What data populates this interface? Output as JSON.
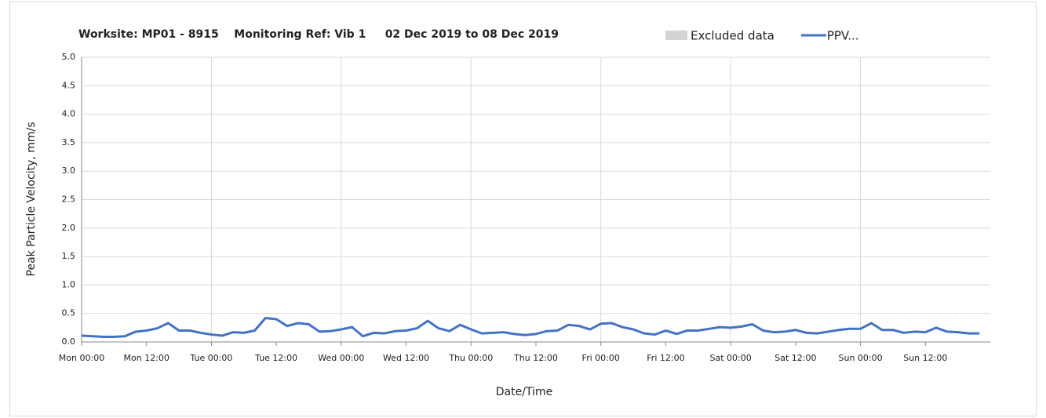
{
  "chart_data": {
    "type": "line",
    "title": "Worksite: MP01 - 8915    Monitoring Ref: Vib 1     02 Dec 2019 to 08 Dec 2019",
    "x_label": "Date/Time",
    "y_label": "Peak Particle Velocity, mm/s",
    "legend": [
      {
        "name": "Excluded data",
        "color": "#d3d3d3"
      }
    ],
    "x": [
      0,
      2,
      4,
      6,
      8,
      10,
      12,
      14,
      16,
      18,
      20,
      22,
      24,
      26,
      28,
      30,
      32,
      34,
      36,
      38,
      40,
      42,
      44,
      46,
      48,
      50,
      52,
      54,
      56,
      58,
      60,
      62,
      64,
      66,
      68,
      70,
      72,
      74,
      76,
      78,
      80,
      82,
      84,
      86,
      88,
      90,
      92,
      94,
      96,
      98,
      100,
      102,
      104,
      106,
      108,
      110,
      112,
      114,
      116,
      118,
      120,
      122,
      124,
      126,
      128,
      130,
      132,
      134,
      136,
      138,
      140,
      142,
      144,
      146,
      148,
      150,
      152,
      154,
      156,
      158,
      160,
      162,
      164,
      166
    ],
    "series": [
      {
        "name": "PPV...",
        "color": "#4472c4",
        "values": [
          0.11,
          0.1,
          0.09,
          0.09,
          0.1,
          0.18,
          0.2,
          0.24,
          0.33,
          0.2,
          0.2,
          0.16,
          0.13,
          0.11,
          0.17,
          0.16,
          0.2,
          0.42,
          0.4,
          0.28,
          0.33,
          0.31,
          0.18,
          0.19,
          0.22,
          0.26,
          0.1,
          0.16,
          0.15,
          0.19,
          0.2,
          0.24,
          0.37,
          0.24,
          0.19,
          0.3,
          0.22,
          0.15,
          0.16,
          0.17,
          0.14,
          0.12,
          0.14,
          0.19,
          0.2,
          0.3,
          0.28,
          0.22,
          0.32,
          0.33,
          0.26,
          0.22,
          0.15,
          0.13,
          0.2,
          0.14,
          0.2,
          0.2,
          0.23,
          0.26,
          0.25,
          0.27,
          0.31,
          0.2,
          0.17,
          0.18,
          0.21,
          0.16,
          0.15,
          0.18,
          0.21,
          0.23,
          0.23,
          0.33,
          0.21,
          0.21,
          0.16,
          0.18,
          0.17,
          0.25,
          0.18,
          0.17,
          0.15,
          0.15
        ]
      }
    ],
    "xlim": [
      0,
      168
    ],
    "xticks": [
      {
        "value": 0,
        "label": "Mon 00:00"
      },
      {
        "value": 12,
        "label": "Mon 12:00"
      },
      {
        "value": 24,
        "label": "Tue 00:00"
      },
      {
        "value": 36,
        "label": "Tue 12:00"
      },
      {
        "value": 48,
        "label": "Wed 00:00"
      },
      {
        "value": 60,
        "label": "Wed 12:00"
      },
      {
        "value": 72,
        "label": "Thu 00:00"
      },
      {
        "value": 84,
        "label": "Thu 12:00"
      },
      {
        "value": 96,
        "label": "Fri 00:00"
      },
      {
        "value": 108,
        "label": "Fri 12:00"
      },
      {
        "value": 120,
        "label": "Sat 00:00"
      },
      {
        "value": 132,
        "label": "Sat 12:00"
      },
      {
        "value": 144,
        "label": "Sun 00:00"
      },
      {
        "value": 156,
        "label": "Sun 12:00"
      }
    ],
    "ylim": [
      0,
      5
    ],
    "yticks": [
      {
        "value": 0,
        "label": "0.0"
      },
      0.5,
      {
        "value": 1,
        "label": "1.0"
      },
      1.5,
      {
        "value": 2,
        "label": "2.0"
      },
      2.5,
      {
        "value": 3,
        "label": "3.0"
      },
      3.5,
      {
        "value": 4,
        "label": "4.0"
      },
      4.5,
      {
        "value": 5,
        "label": "5.0"
      }
    ],
    "grid": true
  }
}
